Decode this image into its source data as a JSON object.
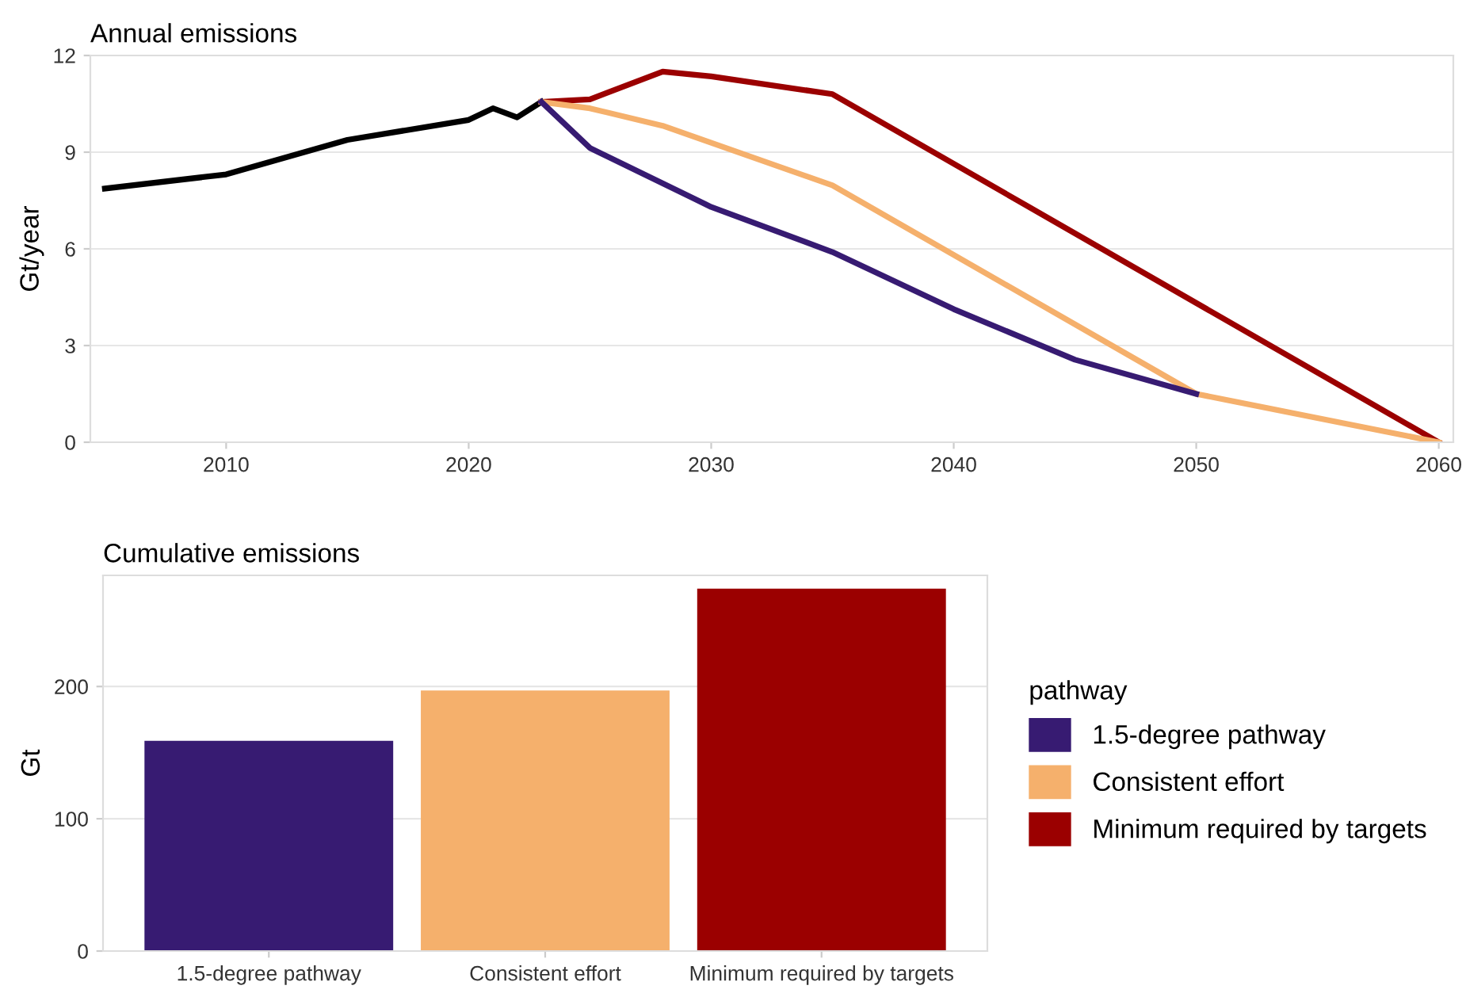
{
  "chart_data": [
    {
      "type": "line",
      "title": "Annual emissions",
      "ylabel": "Gt/year",
      "xlim": [
        2004.4,
        2060.6
      ],
      "ylim": [
        0,
        12
      ],
      "xticks": [
        2010,
        2020,
        2030,
        2040,
        2050,
        2060
      ],
      "yticks": [
        0,
        3,
        6,
        9,
        12
      ],
      "grid": "y",
      "series": [
        {
          "color": "#000000",
          "x": [
            2005,
            2010,
            2015,
            2020,
            2021,
            2022,
            2023
          ],
          "values": [
            7.87,
            8.31,
            9.38,
            10.0,
            10.36,
            10.08,
            10.56
          ]
        },
        {
          "color": "#9b0000",
          "x": [
            2023,
            2025,
            2028,
            2030,
            2035,
            2060
          ],
          "values": [
            10.56,
            10.64,
            11.5,
            11.35,
            10.8,
            0
          ]
        },
        {
          "color": "#f5b06c",
          "x": [
            2023,
            2025,
            2028,
            2035,
            2050,
            2060
          ],
          "values": [
            10.56,
            10.36,
            9.82,
            7.97,
            1.5,
            0
          ]
        },
        {
          "color": "#371b72",
          "x": [
            2023,
            2025,
            2030,
            2035,
            2040,
            2045,
            2050
          ],
          "values": [
            10.56,
            9.13,
            7.3,
            5.9,
            4.13,
            2.56,
            1.5
          ]
        }
      ]
    },
    {
      "type": "bar",
      "title": "Cumulative emissions",
      "ylabel": "Gt",
      "legend_title": "pathway",
      "legend": "right",
      "grid": "y",
      "ylim": [
        0,
        284
      ],
      "yticks": [
        0,
        100,
        200
      ],
      "categories": [
        "1.5-degree pathway",
        "Consistent effort",
        "Minimum required by targets"
      ],
      "series": [
        {
          "name": "1.5-degree pathway",
          "color": "#371b72",
          "values": [
            159,
            null,
            null
          ]
        },
        {
          "name": "Consistent effort",
          "color": "#f5b06c",
          "values": [
            null,
            197,
            null
          ]
        },
        {
          "name": "Minimum required by targets",
          "color": "#9b0000",
          "values": [
            null,
            null,
            274
          ]
        }
      ]
    }
  ]
}
